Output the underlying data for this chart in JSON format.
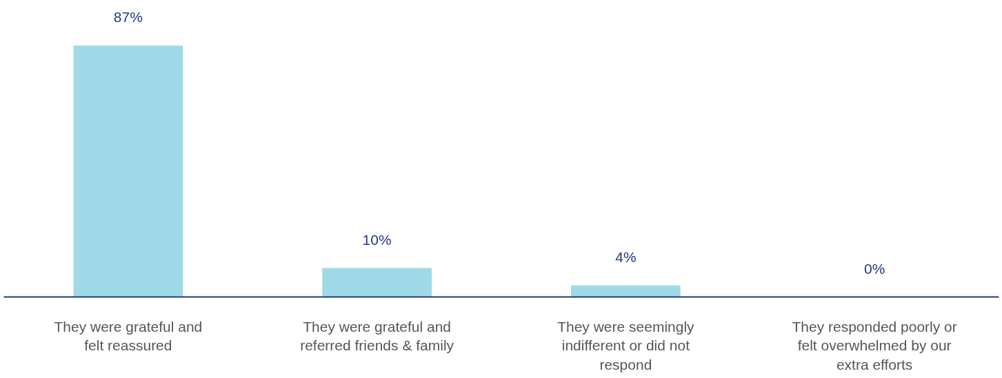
{
  "chart_data": {
    "type": "bar",
    "categories": [
      "They were grateful and felt reassured",
      "They were grateful and referred friends & family",
      "They were seemingly indifferent or did not respond",
      "They responded poorly or felt overwhelmed by our extra efforts"
    ],
    "values": [
      87,
      10,
      4,
      0
    ],
    "color": "#a0dae8",
    "data_labels": true,
    "value_labels": [
      "87%",
      "10%",
      "4%",
      "0%"
    ]
  }
}
